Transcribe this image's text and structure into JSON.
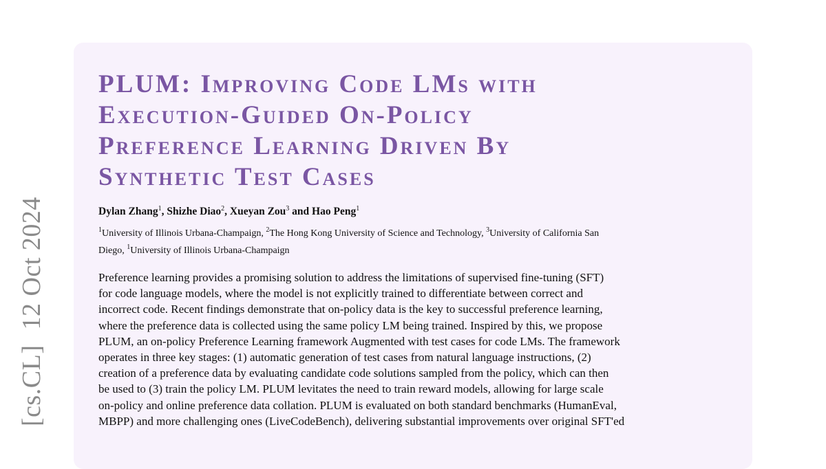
{
  "arxiv_stamp": {
    "category": "[cs.CL]",
    "date": "12 Oct 2024"
  },
  "title_lines": [
    "PLUM: Improving Code LMs with",
    "Execution-Guided On-Policy",
    "Preference Learning Driven By",
    "Synthetic Test Cases"
  ],
  "authors": [
    {
      "name": "Dylan Zhang",
      "sup": "1"
    },
    {
      "name": "Shizhe Diao",
      "sup": "2"
    },
    {
      "name": "Xueyan Zou",
      "sup": "3"
    },
    {
      "name": "Hao Peng",
      "sup": "1"
    }
  ],
  "author_sep": ", ",
  "author_and": " and ",
  "affiliations": [
    {
      "sup": "1",
      "name": "University of Illinois Urbana-Champaign, "
    },
    {
      "sup": "2",
      "name": "The Hong Kong University of Science and Technology, "
    },
    {
      "sup": "3",
      "name": "University of California San"
    },
    {
      "sup": "",
      "name": "Diego, "
    },
    {
      "sup": "1",
      "name": "University of Illinois Urbana-Champaign"
    }
  ],
  "abstract_lines": [
    "Preference learning provides a promising solution to address the limitations of supervised fine-tuning (SFT)",
    "for code language models, where the model is not explicitly trained to differentiate between correct and",
    "incorrect code. Recent findings demonstrate that on-policy data is the key to successful preference learning,",
    "where the preference data is collected using the same policy LM being trained. Inspired by this, we propose",
    "PLUM, an on-policy Preference Learning framework Augmented with test cases for code LMs. The framework",
    "operates in three key stages: (1) automatic generation of test cases from natural language instructions, (2)",
    "creation of a preference data by evaluating candidate code solutions sampled from the policy, which can then",
    "be used to (3) train the policy LM. PLUM levitates the need to train reward models, allowing for large scale",
    "on-policy and online preference data collation. PLUM is evaluated on both standard benchmarks (HumanEval,",
    "MBPP) and more challenging ones (LiveCodeBench), delivering substantial improvements over original SFT'ed"
  ],
  "colors": {
    "title": "#7a56a3",
    "box_background": "#f8f2fc",
    "stamp": "#8a8a8a"
  }
}
